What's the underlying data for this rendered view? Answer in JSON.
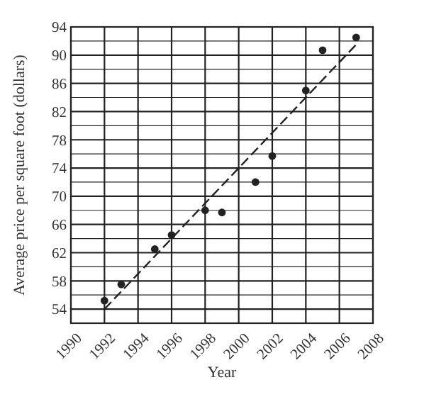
{
  "chart_data": {
    "type": "scatter",
    "xlabel": "Year",
    "ylabel": "Average price per square foot (dollars)",
    "xlim": [
      1990,
      2008
    ],
    "xticks": [
      1990,
      1992,
      1994,
      1996,
      1998,
      2000,
      2002,
      2004,
      2006,
      2008
    ],
    "ylim": [
      52,
      94
    ],
    "yticks": [
      {
        "value": 52,
        "label": null
      },
      54,
      {
        "value": 56,
        "label": null
      },
      58,
      {
        "value": 60,
        "label": null
      },
      62,
      {
        "value": 64,
        "label": null
      },
      66,
      {
        "value": 68,
        "label": null
      },
      70,
      {
        "value": 72,
        "label": null
      },
      74,
      {
        "value": 76,
        "label": null
      },
      78,
      {
        "value": 80,
        "label": null
      },
      82,
      {
        "value": 84,
        "label": null
      },
      86,
      {
        "value": 88,
        "label": null
      },
      90,
      {
        "value": 92,
        "label": null
      },
      94
    ],
    "grid": true,
    "marker": "circle",
    "series": [
      {
        "color": "#222222",
        "x": [
          1992,
          1993,
          1995,
          1996,
          1998,
          1999,
          2001,
          2002,
          2004,
          2005,
          2007
        ],
        "values": [
          55.2,
          57.5,
          62.5,
          64.5,
          68,
          67.7,
          72,
          75.7,
          85,
          90.7,
          92.5
        ]
      },
      {
        "type": "line",
        "color": "#222222",
        "line_style": "dashed",
        "marker": "none",
        "x": [
          1992,
          2007
        ],
        "values": [
          54,
          91.5
        ]
      }
    ]
  }
}
